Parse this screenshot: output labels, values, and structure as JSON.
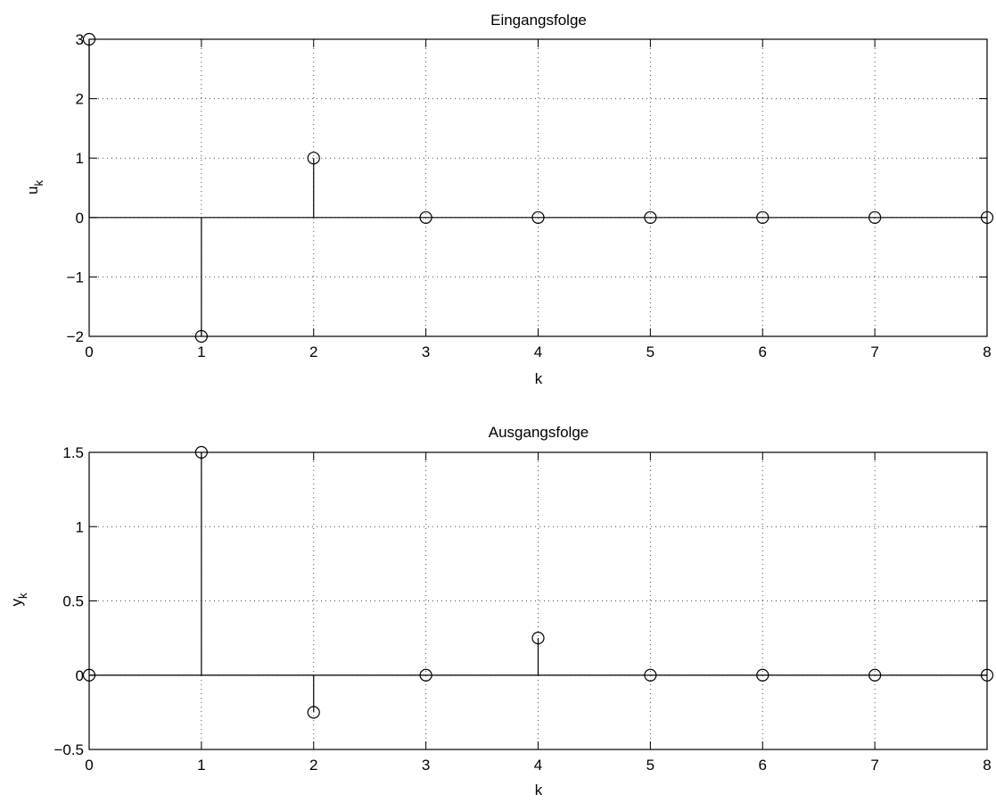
{
  "chart_data": [
    {
      "type": "stem",
      "title": "Eingangsfolge",
      "xlabel": "k",
      "ylabel_main": "u",
      "ylabel_sub": "k",
      "x": [
        0,
        1,
        2,
        3,
        4,
        5,
        6,
        7,
        8
      ],
      "values": [
        3,
        -2,
        1,
        0,
        0,
        0,
        0,
        0,
        0
      ],
      "xlim": [
        0,
        8
      ],
      "ylim": [
        -2,
        3
      ],
      "xticks": [
        "0",
        "1",
        "2",
        "3",
        "4",
        "5",
        "6",
        "7",
        "8"
      ],
      "yticks": [
        "−2",
        "−1",
        "0",
        "1",
        "2",
        "3"
      ],
      "ytick_values": [
        -2,
        -1,
        0,
        1,
        2,
        3
      ],
      "grid": true,
      "color": "#000000"
    },
    {
      "type": "stem",
      "title": "Ausgangsfolge",
      "xlabel": "k",
      "ylabel_main": "y",
      "ylabel_sub": "k",
      "x": [
        0,
        1,
        2,
        3,
        4,
        5,
        6,
        7,
        8
      ],
      "values": [
        0,
        1.5,
        -0.25,
        0,
        0.25,
        0,
        0,
        0,
        0
      ],
      "xlim": [
        0,
        8
      ],
      "ylim": [
        -0.5,
        1.5
      ],
      "xticks": [
        "0",
        "1",
        "2",
        "3",
        "4",
        "5",
        "6",
        "7",
        "8"
      ],
      "yticks": [
        "−0.5",
        "0",
        "0.5",
        "1",
        "1.5"
      ],
      "ytick_values": [
        -0.5,
        0,
        0.5,
        1,
        1.5
      ],
      "grid": true,
      "color": "#000000"
    }
  ]
}
